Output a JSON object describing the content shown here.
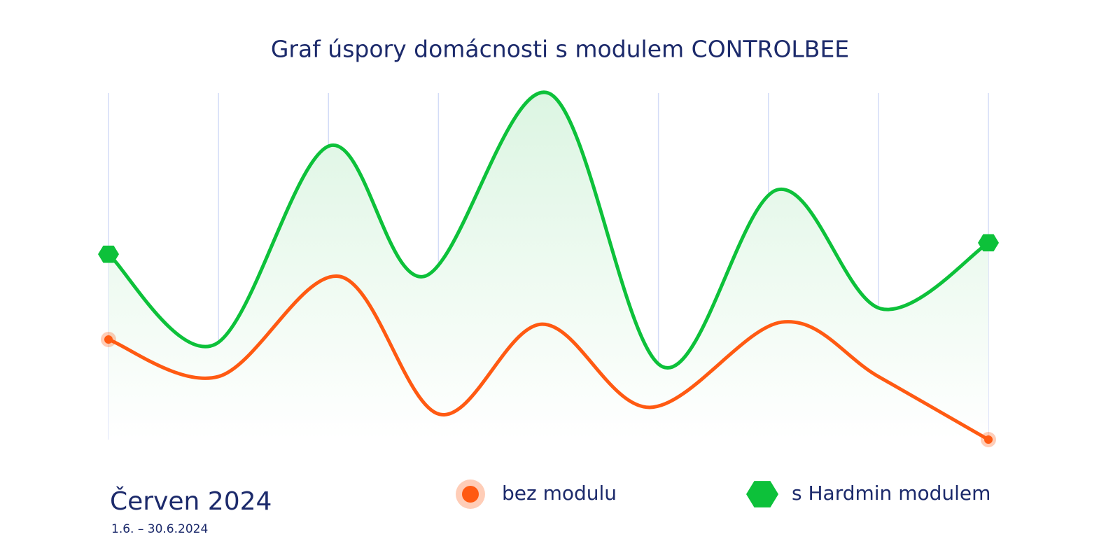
{
  "chart_data": {
    "type": "line",
    "title": "Graf úspory domácnosti s modulem CONTROLBEE",
    "period_label": "Červen 2024",
    "period_range": "1.6. – 30.6.2024",
    "xlim": [
      0,
      8
    ],
    "xticks": [
      0,
      1,
      2,
      3,
      4,
      5,
      6,
      7,
      8
    ],
    "ylim": [
      0,
      100
    ],
    "grid": true,
    "series": [
      {
        "name": "bez modulu",
        "color": "#ff5a12",
        "x": [
          0,
          1.0,
          2.1,
          3.01,
          3.94,
          4.92,
          6.12,
          7.0,
          8
        ],
        "values": [
          28.9,
          18.2,
          47.1,
          7.3,
          33.3,
          9.3,
          33.9,
          18.2,
          0
        ]
      },
      {
        "name": "s Hardmin modulem",
        "color": "#0dc13a",
        "x": [
          0,
          0.97,
          2.01,
          2.87,
          4.0,
          5.04,
          6.08,
          7.02,
          8
        ],
        "values": [
          53.5,
          27.5,
          84.8,
          47.1,
          100,
          21,
          72.1,
          37.8,
          56.8
        ]
      }
    ]
  }
}
